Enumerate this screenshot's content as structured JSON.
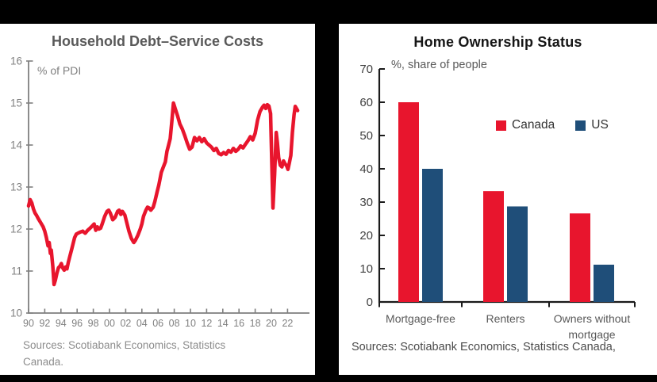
{
  "colors": {
    "canada_red": "#e8152d",
    "us_navy": "#1f4e79",
    "left_axis_gray": "#7f7f7f",
    "left_tick_text_gray": "#808080",
    "right_axis_black": "#1a1a1a",
    "right_tick_text": "#404040",
    "category_text": "#595959",
    "background_black": "#000000",
    "panel_white": "#ffffff"
  },
  "chart_data": [
    {
      "type": "line",
      "title": "Household Debt–Service Costs",
      "unit_label": "% of PDI",
      "source_lines": [
        "Sources: Scotiabank Economics, Statistics",
        "Canada."
      ],
      "ylim": [
        10,
        16
      ],
      "xlim": [
        1990,
        2023.5
      ],
      "y_ticks": [
        10,
        11,
        12,
        13,
        14,
        15,
        16
      ],
      "x_tick_labels": [
        "90",
        "92",
        "94",
        "96",
        "98",
        "00",
        "02",
        "04",
        "06",
        "08",
        "10",
        "12",
        "14",
        "16",
        "18",
        "20",
        "22"
      ],
      "grid": false,
      "series": [
        {
          "name": "Household debt-service costs (% of PDI)",
          "color_key": "canada_red",
          "points": [
            [
              1990.0,
              12.55
            ],
            [
              1990.2,
              12.7
            ],
            [
              1990.4,
              12.62
            ],
            [
              1990.6,
              12.48
            ],
            [
              1990.8,
              12.38
            ],
            [
              1991.0,
              12.32
            ],
            [
              1991.2,
              12.25
            ],
            [
              1991.5,
              12.15
            ],
            [
              1991.8,
              12.05
            ],
            [
              1992.0,
              11.95
            ],
            [
              1992.2,
              11.8
            ],
            [
              1992.4,
              11.6
            ],
            [
              1992.55,
              11.68
            ],
            [
              1992.7,
              11.42
            ],
            [
              1992.8,
              11.5
            ],
            [
              1993.0,
              11.1
            ],
            [
              1993.15,
              10.68
            ],
            [
              1993.3,
              10.78
            ],
            [
              1993.5,
              10.95
            ],
            [
              1993.7,
              11.08
            ],
            [
              1993.9,
              11.12
            ],
            [
              1994.05,
              11.18
            ],
            [
              1994.2,
              11.08
            ],
            [
              1994.4,
              11.02
            ],
            [
              1994.6,
              11.1
            ],
            [
              1994.75,
              11.05
            ],
            [
              1994.9,
              11.2
            ],
            [
              1995.1,
              11.35
            ],
            [
              1995.3,
              11.5
            ],
            [
              1995.5,
              11.65
            ],
            [
              1995.7,
              11.8
            ],
            [
              1995.9,
              11.88
            ],
            [
              1996.1,
              11.9
            ],
            [
              1996.4,
              11.93
            ],
            [
              1996.7,
              11.95
            ],
            [
              1997.0,
              11.9
            ],
            [
              1997.3,
              11.97
            ],
            [
              1997.6,
              12.02
            ],
            [
              1997.9,
              12.08
            ],
            [
              1998.1,
              12.12
            ],
            [
              1998.3,
              11.97
            ],
            [
              1998.5,
              12.05
            ],
            [
              1998.7,
              12.0
            ],
            [
              1998.9,
              12.02
            ],
            [
              1999.1,
              12.12
            ],
            [
              1999.4,
              12.3
            ],
            [
              1999.7,
              12.42
            ],
            [
              1999.9,
              12.45
            ],
            [
              2000.1,
              12.38
            ],
            [
              2000.4,
              12.22
            ],
            [
              2000.7,
              12.28
            ],
            [
              2001.0,
              12.42
            ],
            [
              2001.2,
              12.45
            ],
            [
              2001.4,
              12.35
            ],
            [
              2001.6,
              12.42
            ],
            [
              2001.9,
              12.33
            ],
            [
              2002.1,
              12.18
            ],
            [
              2002.4,
              11.95
            ],
            [
              2002.7,
              11.78
            ],
            [
              2003.0,
              11.68
            ],
            [
              2003.2,
              11.73
            ],
            [
              2003.5,
              11.85
            ],
            [
              2003.8,
              12.0
            ],
            [
              2004.0,
              12.12
            ],
            [
              2004.2,
              12.3
            ],
            [
              2004.5,
              12.45
            ],
            [
              2004.7,
              12.52
            ],
            [
              2004.9,
              12.5
            ],
            [
              2005.1,
              12.45
            ],
            [
              2005.4,
              12.52
            ],
            [
              2005.6,
              12.65
            ],
            [
              2005.9,
              12.9
            ],
            [
              2006.1,
              13.05
            ],
            [
              2006.4,
              13.35
            ],
            [
              2006.6,
              13.45
            ],
            [
              2006.9,
              13.6
            ],
            [
              2007.1,
              13.85
            ],
            [
              2007.3,
              14.0
            ],
            [
              2007.5,
              14.15
            ],
            [
              2007.7,
              14.55
            ],
            [
              2007.9,
              15.0
            ],
            [
              2008.1,
              14.88
            ],
            [
              2008.4,
              14.7
            ],
            [
              2008.7,
              14.5
            ],
            [
              2009.0,
              14.38
            ],
            [
              2009.3,
              14.22
            ],
            [
              2009.6,
              14.05
            ],
            [
              2009.9,
              13.9
            ],
            [
              2010.2,
              13.95
            ],
            [
              2010.5,
              14.18
            ],
            [
              2010.8,
              14.1
            ],
            [
              2011.1,
              14.18
            ],
            [
              2011.4,
              14.08
            ],
            [
              2011.7,
              14.15
            ],
            [
              2012.0,
              14.05
            ],
            [
              2012.3,
              14.0
            ],
            [
              2012.6,
              13.95
            ],
            [
              2012.9,
              13.87
            ],
            [
              2013.2,
              13.92
            ],
            [
              2013.5,
              13.8
            ],
            [
              2013.8,
              13.77
            ],
            [
              2014.1,
              13.82
            ],
            [
              2014.4,
              13.78
            ],
            [
              2014.7,
              13.87
            ],
            [
              2015.0,
              13.83
            ],
            [
              2015.3,
              13.92
            ],
            [
              2015.6,
              13.85
            ],
            [
              2015.9,
              13.9
            ],
            [
              2016.2,
              13.98
            ],
            [
              2016.5,
              13.93
            ],
            [
              2016.8,
              14.02
            ],
            [
              2017.1,
              14.1
            ],
            [
              2017.4,
              14.2
            ],
            [
              2017.7,
              14.12
            ],
            [
              2018.0,
              14.28
            ],
            [
              2018.3,
              14.6
            ],
            [
              2018.6,
              14.8
            ],
            [
              2018.9,
              14.9
            ],
            [
              2019.1,
              14.95
            ],
            [
              2019.3,
              14.87
            ],
            [
              2019.5,
              14.96
            ],
            [
              2019.7,
              14.93
            ],
            [
              2019.9,
              14.75
            ],
            [
              2020.05,
              13.6
            ],
            [
              2020.2,
              12.5
            ],
            [
              2020.4,
              13.3
            ],
            [
              2020.6,
              14.3
            ],
            [
              2020.75,
              14.05
            ],
            [
              2020.9,
              13.7
            ],
            [
              2021.1,
              13.52
            ],
            [
              2021.3,
              13.48
            ],
            [
              2021.5,
              13.62
            ],
            [
              2021.7,
              13.55
            ],
            [
              2021.9,
              13.5
            ],
            [
              2022.05,
              13.42
            ],
            [
              2022.2,
              13.55
            ],
            [
              2022.4,
              13.75
            ],
            [
              2022.6,
              14.3
            ],
            [
              2022.8,
              14.72
            ],
            [
              2022.95,
              14.92
            ],
            [
              2023.25,
              14.82
            ]
          ]
        }
      ]
    },
    {
      "type": "bar",
      "title": "Home Ownership Status",
      "unit_label": "%, share of people",
      "source": "Sources: Scotiabank Economics, Statistics Canada,",
      "ylim": [
        0,
        70
      ],
      "y_ticks": [
        0,
        10,
        20,
        30,
        40,
        50,
        60,
        70
      ],
      "grid": false,
      "legend_position": "inside-top-right",
      "categories": [
        "Mortgage-free",
        "Renters",
        "Owners without\nmortgage"
      ],
      "series": [
        {
          "name": "Canada",
          "color": "#e8152d",
          "values": [
            60,
            33.3,
            26.6
          ]
        },
        {
          "name": "US",
          "color": "#1f4e79",
          "values": [
            40,
            28.7,
            11.2
          ]
        }
      ]
    }
  ]
}
